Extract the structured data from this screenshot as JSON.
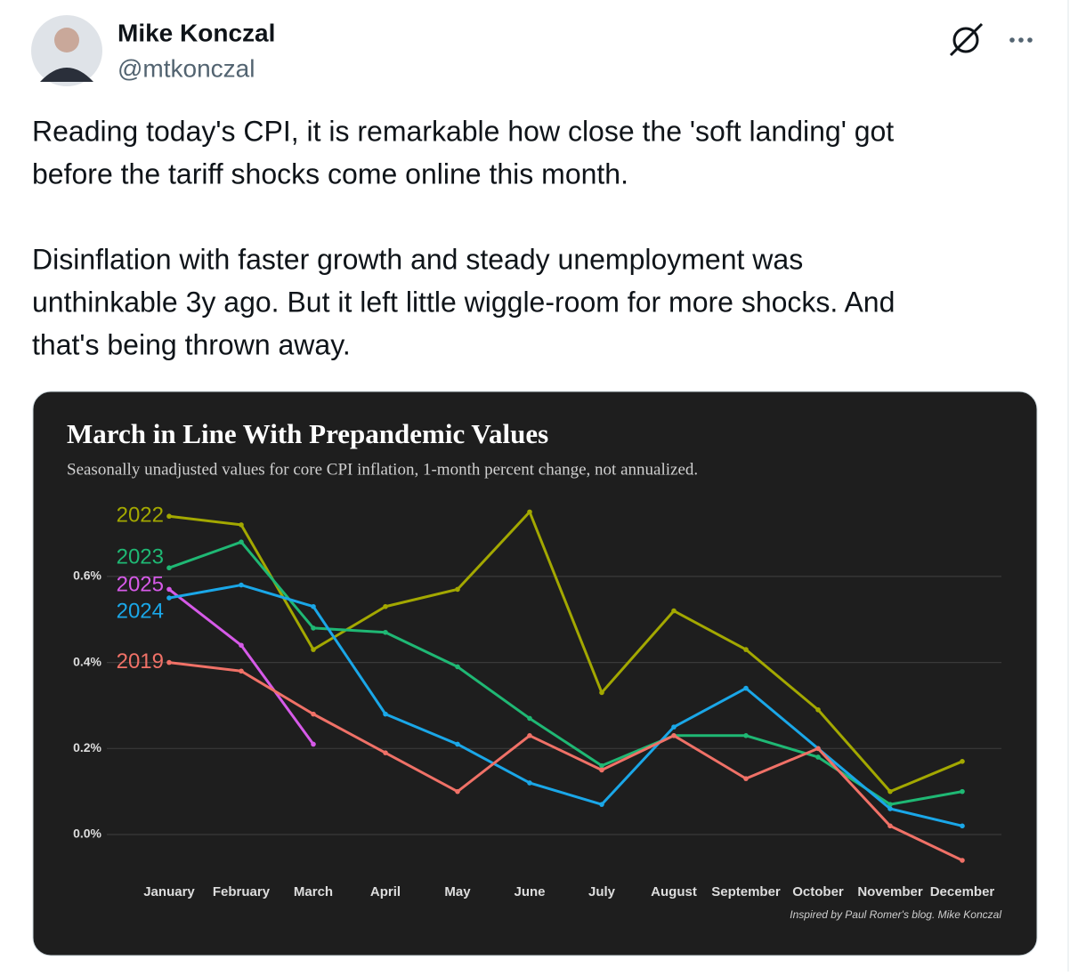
{
  "post": {
    "author": "Mike Konczal",
    "handle": "@mtkonczal",
    "paragraphs": [
      [
        "Reading today's CPI, it is remarkable how close the 'soft landing' got",
        "before the tariff shocks come online this month."
      ],
      [
        "Disinflation with faster growth and steady unemployment was",
        "unthinkable 3y ago. But it left little wiggle-room for more shocks. And",
        "that's being thrown away."
      ]
    ]
  },
  "chart_data": {
    "type": "line",
    "title": "March in Line With Prepandemic Values",
    "subtitle": "Seasonally unadjusted values for core CPI inflation, 1-month percent change, not annualized.",
    "credit": "Inspired by Paul Romer's blog. Mike Konczal",
    "categories": [
      "January",
      "February",
      "March",
      "April",
      "May",
      "June",
      "July",
      "August",
      "September",
      "October",
      "November",
      "December"
    ],
    "series": [
      {
        "name": "2022",
        "color": "#a3a800",
        "values": [
          0.74,
          0.72,
          0.43,
          0.53,
          0.57,
          0.75,
          0.33,
          0.52,
          0.43,
          0.29,
          0.1,
          0.17
        ]
      },
      {
        "name": "2023",
        "color": "#1fb874",
        "values": [
          0.62,
          0.68,
          0.48,
          0.47,
          0.39,
          0.27,
          0.16,
          0.23,
          0.23,
          0.18,
          0.07,
          0.1
        ]
      },
      {
        "name": "2025",
        "color": "#d65ae8",
        "values": [
          0.57,
          0.44,
          0.21,
          null,
          null,
          null,
          null,
          null,
          null,
          null,
          null,
          null
        ]
      },
      {
        "name": "2024",
        "color": "#1aa7e8",
        "values": [
          0.55,
          0.58,
          0.53,
          0.28,
          0.21,
          0.12,
          0.07,
          0.25,
          0.34,
          0.2,
          0.06,
          0.02
        ]
      },
      {
        "name": "2019",
        "color": "#f07167",
        "values": [
          0.4,
          0.38,
          0.28,
          0.19,
          0.1,
          0.23,
          0.15,
          0.23,
          0.13,
          0.2,
          0.02,
          -0.06
        ]
      }
    ],
    "ylim": [
      -0.1,
      0.8
    ],
    "yticks": [
      {
        "value": 0,
        "label": "0.0%"
      },
      {
        "value": 0.2,
        "label": "0.2%"
      },
      {
        "value": 0.4,
        "label": "0.4%"
      },
      {
        "value": 0.6,
        "label": "0.6%"
      }
    ],
    "grid": true
  }
}
